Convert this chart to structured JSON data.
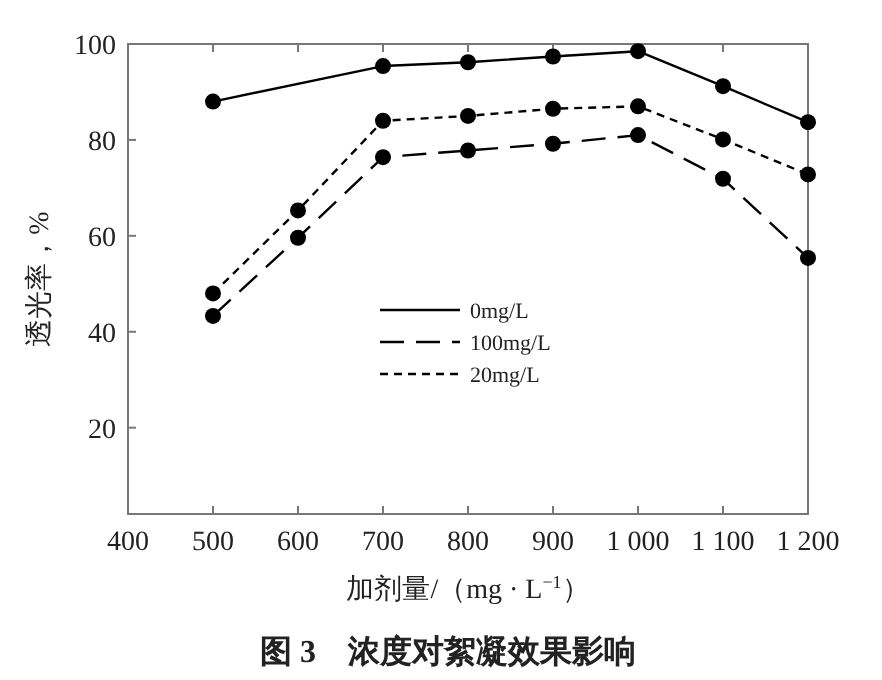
{
  "chart_data": {
    "type": "line",
    "title": "图 3　浓度对絮凝效果影响",
    "xlabel": "加剂量/（mg · L$^{−1}$）",
    "ylabel": "透光率，%",
    "x": [
      500,
      600,
      700,
      800,
      900,
      1000,
      1100,
      1200
    ],
    "series": [
      {
        "name": "0mg/L",
        "color": "#000000",
        "line_style": "solid",
        "values": [
          88,
          null,
          95.4,
          96.2,
          97.4,
          98.5,
          91.2,
          83.7
        ]
      },
      {
        "name": "100mg/L",
        "color": "#000000",
        "line_style": "dashed",
        "values": [
          43.3,
          59.6,
          76.4,
          77.8,
          79.2,
          81,
          71.9,
          55.4
        ]
      },
      {
        "name": "20mg/L",
        "color": "#000000",
        "line_style": "dotted",
        "values": [
          48,
          65.3,
          84,
          85,
          86.5,
          87,
          80.1,
          72.8
        ]
      }
    ],
    "marker": "circle",
    "legend": "right",
    "grid": false,
    "xlim": [
      400,
      1200
    ],
    "xticks": [
      400,
      500,
      600,
      700,
      800,
      900,
      {
        "value": 1000,
        "label": "1 000"
      },
      {
        "value": 1100,
        "label": "1 100"
      },
      {
        "value": 1200,
        "label": "1 200"
      }
    ],
    "ylim": [
      2,
      100
    ],
    "yticks": [
      20,
      40,
      60,
      80,
      100
    ]
  }
}
